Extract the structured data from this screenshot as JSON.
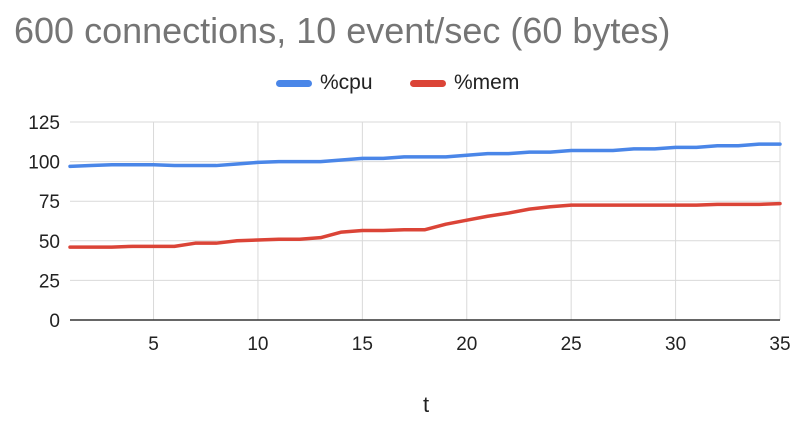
{
  "chart_data": {
    "type": "line",
    "title": "600 connections, 10 event/sec (60 bytes)",
    "xlabel": "t",
    "ylabel": "",
    "xlim": [
      1,
      35
    ],
    "ylim": [
      0,
      125
    ],
    "x_ticks": [
      5,
      10,
      15,
      20,
      25,
      30,
      35
    ],
    "y_ticks": [
      0,
      25,
      50,
      75,
      100,
      125
    ],
    "grid": true,
    "legend_position": "top",
    "x": [
      1,
      2,
      3,
      4,
      5,
      6,
      7,
      8,
      9,
      10,
      11,
      12,
      13,
      14,
      15,
      16,
      17,
      18,
      19,
      20,
      21,
      22,
      23,
      24,
      25,
      26,
      27,
      28,
      29,
      30,
      31,
      32,
      33,
      34,
      35
    ],
    "series": [
      {
        "name": "%cpu",
        "color": "#4a86e8",
        "values": [
          97,
          97.5,
          98,
          98,
          98,
          97.5,
          97.5,
          97.5,
          98.5,
          99.5,
          100,
          100,
          100,
          101,
          102,
          102,
          103,
          103,
          103,
          104,
          105,
          105,
          106,
          106,
          107,
          107,
          107,
          108,
          108,
          109,
          109,
          110,
          110,
          111,
          111
        ]
      },
      {
        "name": "%mem",
        "color": "#db4437",
        "values": [
          46,
          46,
          46,
          46.5,
          46.5,
          46.5,
          48.5,
          48.5,
          50,
          50.5,
          51,
          51,
          52,
          55.5,
          56.5,
          56.5,
          57,
          57,
          60.5,
          63,
          65.5,
          67.5,
          70,
          71.5,
          72.5,
          72.5,
          72.5,
          72.5,
          72.5,
          72.5,
          72.5,
          73,
          73,
          73,
          73.5
        ]
      }
    ]
  }
}
